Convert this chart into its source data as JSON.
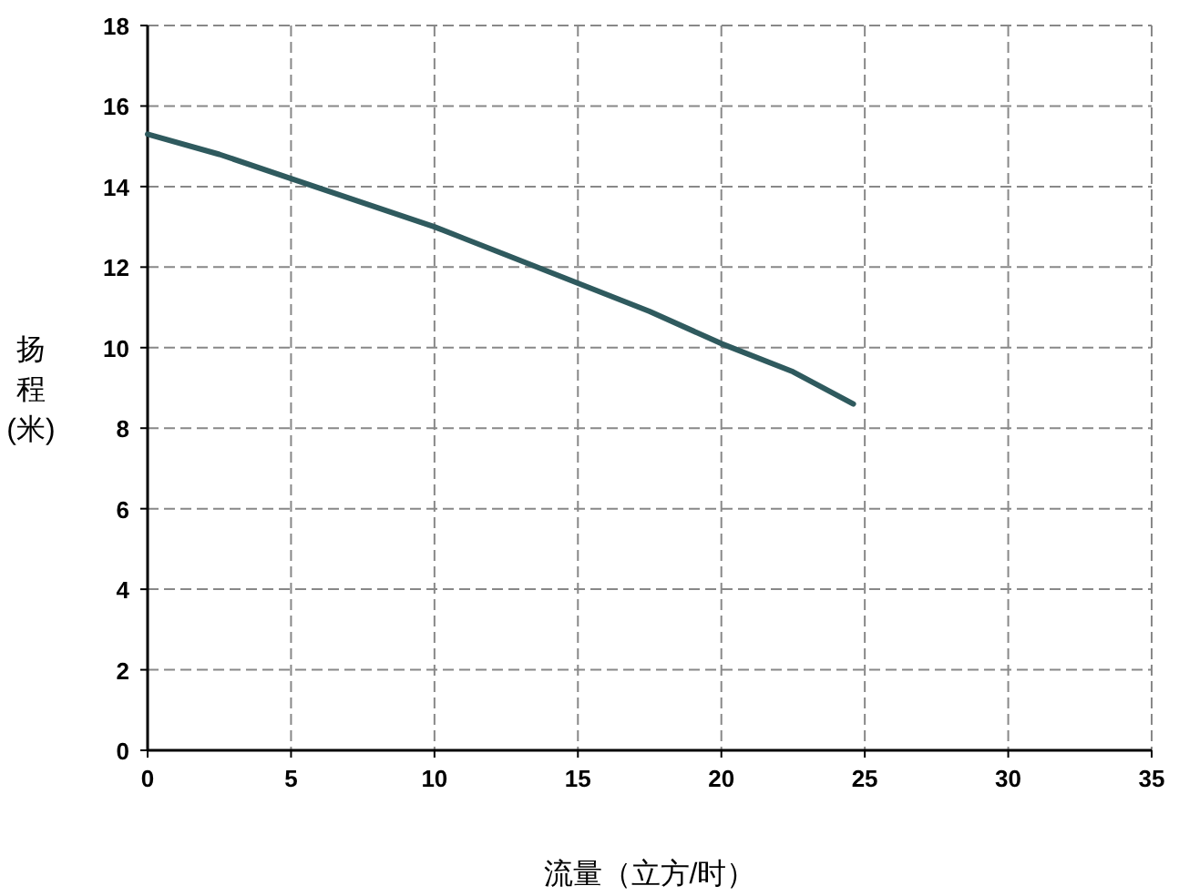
{
  "chart_data": {
    "type": "line",
    "xlabel": "流量（立方/时）",
    "ylabel": "扬程(米)",
    "x": [
      0,
      2.5,
      5,
      7.5,
      10,
      12.5,
      15,
      17.5,
      20,
      22.5,
      24.6
    ],
    "series": [
      {
        "color": "#2f5a5e",
        "values": [
          15.3,
          14.8,
          14.2,
          13.6,
          13.0,
          12.3,
          11.6,
          10.9,
          10.1,
          9.4,
          8.6
        ]
      }
    ],
    "xlim": [
      0,
      35
    ],
    "ylim": [
      0,
      18
    ],
    "xticks": [
      0,
      5,
      10,
      15,
      20,
      25,
      30,
      35
    ],
    "yticks": [
      0,
      2,
      4,
      6,
      8,
      10,
      12,
      14,
      16,
      18
    ],
    "grid": true,
    "marker": "none",
    "line_style": "solid"
  }
}
